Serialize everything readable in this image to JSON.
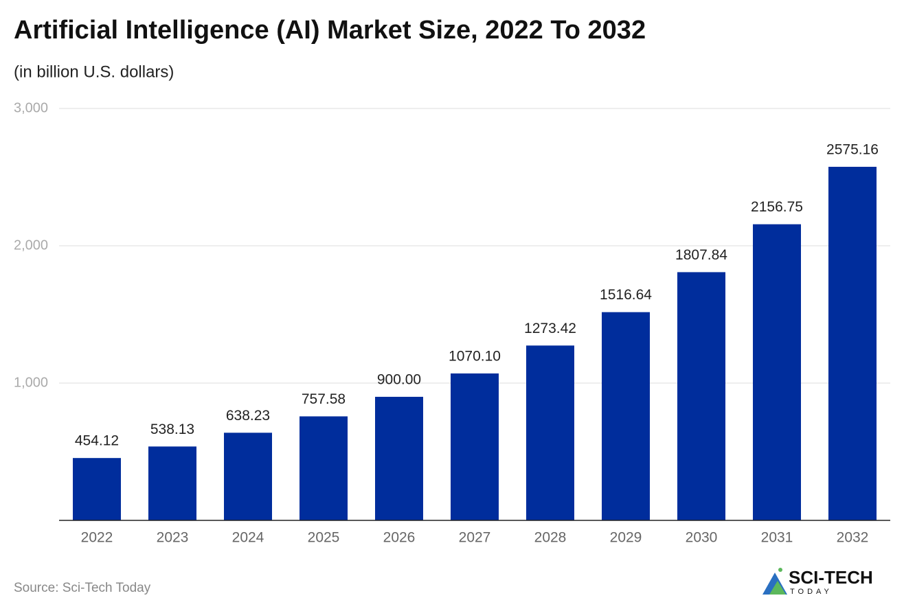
{
  "chart_data": {
    "type": "bar",
    "title": "Artificial Intelligence (AI) Market Size, 2022 To 2032",
    "subtitle": "(in billion U.S. dollars)",
    "categories": [
      "2022",
      "2023",
      "2024",
      "2025",
      "2026",
      "2027",
      "2028",
      "2029",
      "2030",
      "2031",
      "2032"
    ],
    "values": [
      454.12,
      538.13,
      638.23,
      757.58,
      900.0,
      1070.1,
      1273.42,
      1516.64,
      1807.84,
      2156.75,
      2575.16
    ],
    "value_labels": [
      "454.12",
      "538.13",
      "638.23",
      "757.58",
      "900.00",
      "1070.10",
      "1273.42",
      "1516.64",
      "1807.84",
      "2156.75",
      "2575.16"
    ],
    "color": "#002d9c",
    "ylim": [
      0,
      3000
    ],
    "yticks": [
      {
        "value": 1000,
        "label": "1,000"
      },
      {
        "value": 2000,
        "label": "2,000"
      },
      {
        "value": 3000,
        "label": "3,000"
      }
    ],
    "grid": true,
    "source": "Source: Sci-Tech Today"
  },
  "logo": {
    "name": "SCI-TECH",
    "tagline": "TODAY"
  }
}
